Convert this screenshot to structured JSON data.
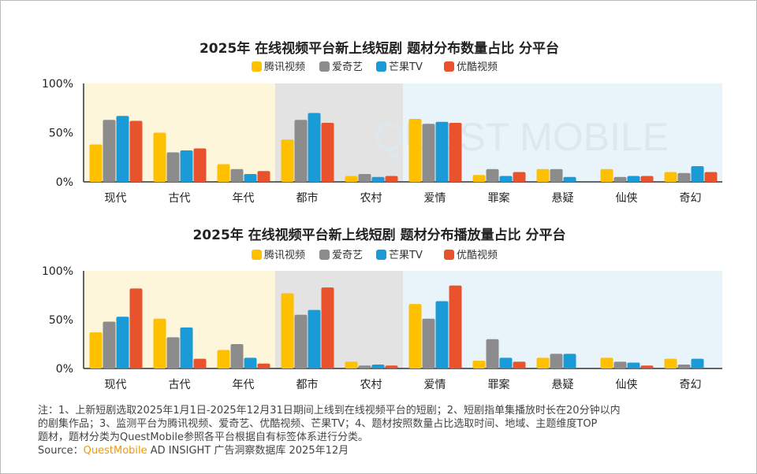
{
  "chart_data": [
    {
      "type": "bar",
      "title": "2025年 在线视频平台新上线短剧 题材分布数量占比 分平台",
      "categories": [
        "现代",
        "古代",
        "年代",
        "都市",
        "农村",
        "爱情",
        "罪案",
        "悬疑",
        "仙侠",
        "奇幻"
      ],
      "ylim": [
        0,
        100
      ],
      "yticks": [
        "0%",
        "50%",
        "100%"
      ],
      "legend_position": "top-center",
      "series": [
        {
          "name": "腾讯视频",
          "color": "#ffc000",
          "values": [
            38,
            50,
            18,
            43,
            6,
            64,
            7,
            13,
            13,
            10
          ]
        },
        {
          "name": "爱奇艺",
          "color": "#8c8c8c",
          "values": [
            63,
            30,
            13,
            63,
            8,
            59,
            13,
            13,
            5,
            9
          ]
        },
        {
          "name": "芒果TV",
          "color": "#1a9ad6",
          "values": [
            67,
            32,
            8,
            70,
            5,
            61,
            6,
            5,
            6,
            16
          ]
        },
        {
          "name": "优酷视频",
          "color": "#e8532e",
          "values": [
            62,
            34,
            11,
            60,
            6,
            60,
            10,
            0,
            6,
            10
          ]
        }
      ]
    },
    {
      "type": "bar",
      "title": "2025年 在线视频平台新上线短剧 题材分布播放量占比 分平台",
      "categories": [
        "现代",
        "古代",
        "年代",
        "都市",
        "农村",
        "爱情",
        "罪案",
        "悬疑",
        "仙侠",
        "奇幻"
      ],
      "ylim": [
        0,
        100
      ],
      "yticks": [
        "0%",
        "50%",
        "100%"
      ],
      "legend_position": "top-center",
      "series": [
        {
          "name": "腾讯视频",
          "color": "#ffc000",
          "values": [
            37,
            51,
            19,
            77,
            7,
            66,
            8,
            11,
            11,
            10
          ]
        },
        {
          "name": "爱奇艺",
          "color": "#8c8c8c",
          "values": [
            48,
            32,
            25,
            55,
            3,
            51,
            30,
            15,
            7,
            4
          ]
        },
        {
          "name": "芒果TV",
          "color": "#1a9ad6",
          "values": [
            53,
            42,
            11,
            60,
            4,
            69,
            11,
            15,
            6,
            10
          ]
        },
        {
          "name": "优酷视频",
          "color": "#e8532e",
          "values": [
            82,
            10,
            5,
            83,
            3,
            85,
            7,
            0,
            3,
            0
          ]
        }
      ]
    }
  ],
  "notes": {
    "line1": "注：1、上新短剧选取2025年1月1日-2025年12月31日期间上线到在线视频平台的短剧；2、短剧指单集播放时长在20分钟以内",
    "line2": "的剧集作品；3、监测平台为腾讯视频、爱奇艺、优酷视频、芒果TV；4、题材按照数量占比选取时间、地域、主题维度TOP",
    "line3": "题材，题材分类为QuestMobile参照各平台根据自有标签体系进行分类。",
    "source_label": "Source：",
    "source_brand": "QuestMobile",
    "source_rest": " AD INSIGHT 广告洞察数据库 2025年12月"
  },
  "watermark": "QUEST MOBILE"
}
